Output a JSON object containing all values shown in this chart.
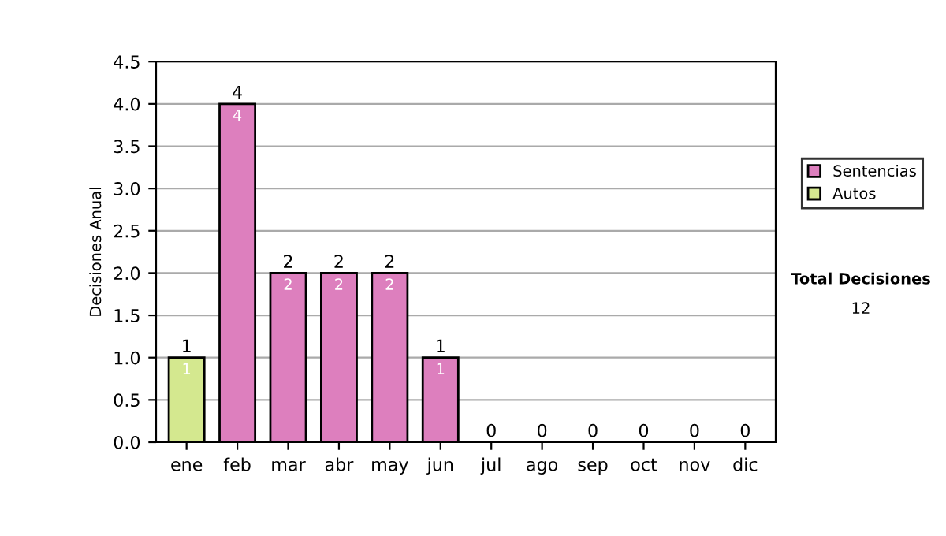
{
  "chart_data": {
    "type": "bar",
    "stacked": true,
    "ylabel": "Decisiones Anual",
    "categories": [
      "ene",
      "feb",
      "mar",
      "abr",
      "may",
      "jun",
      "jul",
      "ago",
      "sep",
      "oct",
      "nov",
      "dic"
    ],
    "series": [
      {
        "name": "Sentencias",
        "color": "#dd7fbe",
        "values": [
          0,
          4,
          2,
          2,
          2,
          1,
          0,
          0,
          0,
          0,
          0,
          0
        ],
        "value_labels": [
          null,
          "4",
          "2",
          "2",
          "2",
          "1",
          null,
          null,
          null,
          null,
          null,
          null
        ]
      },
      {
        "name": "Autos",
        "color": "#d4e88f",
        "values": [
          1,
          0,
          0,
          0,
          0,
          0,
          0,
          0,
          0,
          0,
          0,
          0
        ],
        "value_labels": [
          "1",
          null,
          null,
          null,
          null,
          null,
          null,
          null,
          null,
          null,
          null,
          null
        ]
      }
    ],
    "totals": [
      "1",
      "4",
      "2",
      "2",
      "2",
      "1",
      "0",
      "0",
      "0",
      "0",
      "0",
      "0"
    ],
    "ylim": [
      0,
      4.5
    ],
    "yticks": [
      {
        "value": 0,
        "label": "0.0"
      },
      {
        "value": 0.5,
        "label": "0.5"
      },
      {
        "value": 1,
        "label": "1.0"
      },
      {
        "value": 1.5,
        "label": "1.5"
      },
      {
        "value": 2,
        "label": "2.0"
      },
      {
        "value": 2.5,
        "label": "2.5"
      },
      {
        "value": 3,
        "label": "3.0"
      },
      {
        "value": 3.5,
        "label": "3.5"
      },
      {
        "value": 4,
        "label": "4.0"
      },
      {
        "value": 4.5,
        "label": "4.5"
      }
    ],
    "grid": "y",
    "legend": "right",
    "annotations": [
      "Total Decisiones",
      "12"
    ]
  }
}
